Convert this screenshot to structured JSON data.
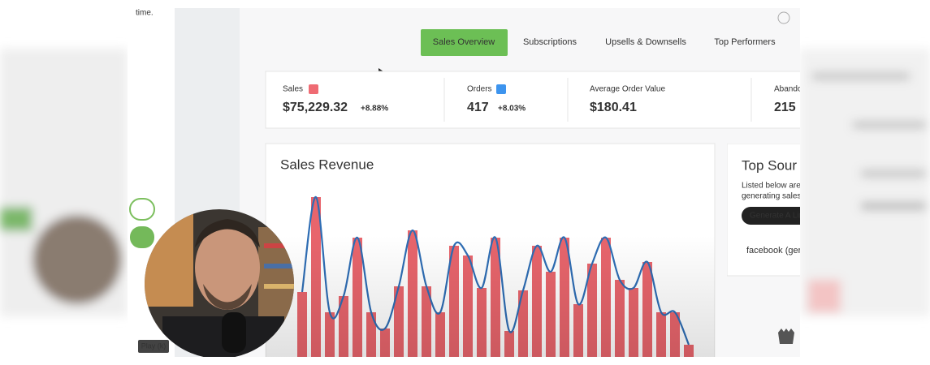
{
  "page": {
    "sidebar_text": "time.",
    "tabs": [
      "Sales Overview",
      "Subscriptions",
      "Upsells & Downsells",
      "Top Performers"
    ],
    "stats": [
      {
        "label": "Sales",
        "value": "$75,229.32",
        "change": "+8.88%"
      },
      {
        "label": "Orders",
        "value": "417",
        "change": "+8.03%"
      },
      {
        "label": "Average Order Value",
        "value": "$180.41"
      },
      {
        "label": "Abando",
        "value": "215"
      }
    ],
    "top_sources": {
      "title": "Top Sour",
      "lines": [
        "Listed below are",
        "generating sales"
      ],
      "button": "Generate A Lin",
      "item": "facebook (ger"
    },
    "video": {
      "play_label": "Play (k)"
    }
  },
  "chart_data": {
    "type": "bar",
    "title": "Sales Revenue",
    "values": [
      80,
      197,
      55,
      75,
      147,
      55,
      35,
      87,
      156,
      87,
      55,
      137,
      125,
      85,
      147,
      32,
      82,
      137,
      105,
      147,
      65,
      115,
      147,
      95,
      85,
      117,
      55,
      55,
      15
    ],
    "color": "#e8656c",
    "line_color": "#2e6db4"
  }
}
